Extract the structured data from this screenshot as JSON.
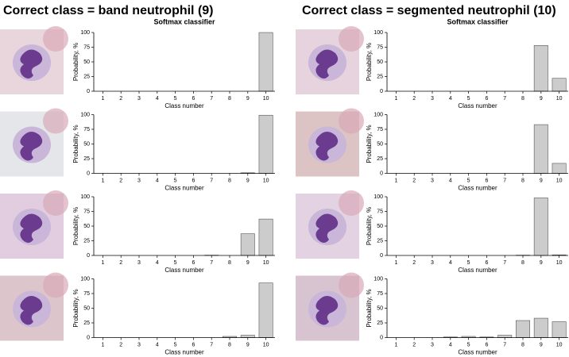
{
  "headings": [
    "Correct class = band neutrophil (9)",
    "Correct class = segmented neutrophil (10)"
  ],
  "chart_data": [
    {
      "type": "bar",
      "title": "Softmax classifier",
      "categories": [
        "1",
        "2",
        "3",
        "4",
        "5",
        "6",
        "7",
        "8",
        "9",
        "10"
      ],
      "values": [
        0,
        0,
        0,
        0,
        0,
        0,
        0,
        0,
        0,
        100
      ],
      "color": "#cccccc",
      "ylim": [
        0,
        100
      ],
      "yticks": [
        0,
        25,
        50,
        75,
        100
      ],
      "xlabel": "Class number",
      "ylabel": "Probability, %"
    },
    {
      "type": "bar",
      "categories": [
        "1",
        "2",
        "3",
        "4",
        "5",
        "6",
        "7",
        "8",
        "9",
        "10"
      ],
      "values": [
        0,
        0,
        0,
        0,
        0,
        0,
        0,
        0,
        1,
        99
      ],
      "color": "#cccccc",
      "ylim": [
        0,
        100
      ],
      "yticks": [
        0,
        25,
        50,
        75,
        100
      ],
      "xlabel": "Class number",
      "ylabel": "Probability, %"
    },
    {
      "type": "bar",
      "categories": [
        "1",
        "2",
        "3",
        "4",
        "5",
        "6",
        "7",
        "8",
        "9",
        "10"
      ],
      "values": [
        0,
        0,
        0,
        0,
        0,
        0,
        0.5,
        0,
        37,
        62
      ],
      "color": "#cccccc",
      "ylim": [
        0,
        100
      ],
      "yticks": [
        0,
        25,
        50,
        75,
        100
      ],
      "xlabel": "Class number",
      "ylabel": "Probability, %"
    },
    {
      "type": "bar",
      "categories": [
        "1",
        "2",
        "3",
        "4",
        "5",
        "6",
        "7",
        "8",
        "9",
        "10"
      ],
      "values": [
        0,
        0,
        0,
        0,
        0,
        0,
        0,
        2,
        4,
        93
      ],
      "color": "#cccccc",
      "ylim": [
        0,
        100
      ],
      "yticks": [
        0,
        25,
        50,
        75,
        100
      ],
      "xlabel": "Class number",
      "ylabel": "Probability, %"
    },
    {
      "type": "bar",
      "title": "Softmax classifier",
      "categories": [
        "1",
        "2",
        "3",
        "4",
        "5",
        "6",
        "7",
        "8",
        "9",
        "10"
      ],
      "values": [
        0,
        0,
        0,
        0,
        0,
        0,
        0,
        0,
        78,
        22
      ],
      "color": "#cccccc",
      "ylim": [
        0,
        100
      ],
      "yticks": [
        0,
        25,
        50,
        75,
        100
      ],
      "xlabel": "Class number",
      "ylabel": "Probability, %"
    },
    {
      "type": "bar",
      "categories": [
        "1",
        "2",
        "3",
        "4",
        "5",
        "6",
        "7",
        "8",
        "9",
        "10"
      ],
      "values": [
        0,
        0,
        0,
        0,
        0,
        0,
        0,
        0,
        83,
        17
      ],
      "color": "#cccccc",
      "ylim": [
        0,
        100
      ],
      "yticks": [
        0,
        25,
        50,
        75,
        100
      ],
      "xlabel": "Class number",
      "ylabel": "Probability, %"
    },
    {
      "type": "bar",
      "categories": [
        "1",
        "2",
        "3",
        "4",
        "5",
        "6",
        "7",
        "8",
        "9",
        "10"
      ],
      "values": [
        0,
        0,
        0,
        0,
        0,
        0,
        0,
        0.5,
        98,
        1
      ],
      "color": "#cccccc",
      "ylim": [
        0,
        100
      ],
      "yticks": [
        0,
        25,
        50,
        75,
        100
      ],
      "xlabel": "Class number",
      "ylabel": "Probability, %"
    },
    {
      "type": "bar",
      "categories": [
        "1",
        "2",
        "3",
        "4",
        "5",
        "6",
        "7",
        "8",
        "9",
        "10"
      ],
      "values": [
        0,
        0,
        0,
        1,
        2,
        1,
        4,
        29,
        33,
        27
      ],
      "color": "#cccccc",
      "ylim": [
        0,
        100
      ],
      "yticks": [
        0,
        25,
        50,
        75,
        100
      ],
      "xlabel": "Class number",
      "ylabel": "Probability, %"
    }
  ]
}
